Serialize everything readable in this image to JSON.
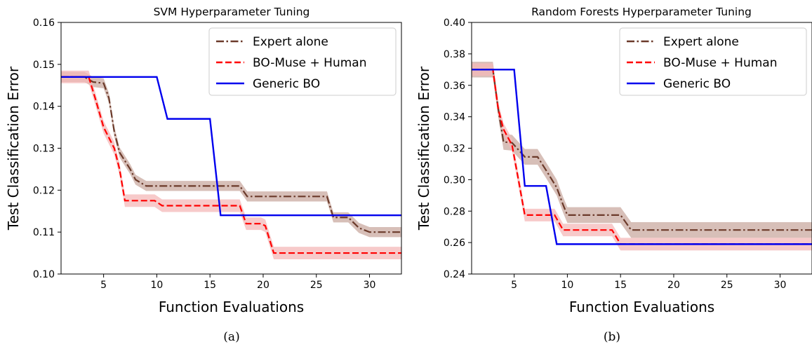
{
  "chart_data": [
    {
      "type": "line",
      "title": "SVM Hyperparameter Tuning",
      "xlabel": "Function Evaluations",
      "ylabel": "Test Classification Error",
      "caption": "(a)",
      "xlim": [
        1,
        33
      ],
      "ylim": [
        0.1,
        0.16
      ],
      "xticks": [
        5,
        10,
        15,
        20,
        25,
        30
      ],
      "yticks": [
        0.1,
        0.11,
        0.12,
        0.13,
        0.14,
        0.15,
        0.16
      ],
      "ytick_labels": [
        "0.10",
        "0.11",
        "0.12",
        "0.13",
        "0.14",
        "0.15",
        "0.16"
      ],
      "grid": false,
      "legend_position": "top-right",
      "series": [
        {
          "name": "Expert alone",
          "color": "#6b3a2a",
          "style": "dashdot",
          "band_color": "#c9a9a0",
          "band": 0.0012,
          "points": [
            [
              1,
              0.147
            ],
            [
              3.2,
              0.147
            ],
            [
              4,
              0.1458
            ],
            [
              5,
              0.1455
            ],
            [
              5.5,
              0.142
            ],
            [
              6,
              0.134
            ],
            [
              6.5,
              0.129
            ],
            [
              7,
              0.127
            ],
            [
              7.5,
              0.125
            ],
            [
              8,
              0.1225
            ],
            [
              9,
              0.121
            ],
            [
              17.8,
              0.121
            ],
            [
              18.5,
              0.1185
            ],
            [
              26,
              0.1185
            ],
            [
              26.6,
              0.1135
            ],
            [
              28,
              0.1135
            ],
            [
              29,
              0.111
            ],
            [
              30,
              0.11
            ],
            [
              33,
              0.11
            ]
          ]
        },
        {
          "name": "BO-Muse + Human",
          "color": "#ff0000",
          "style": "dashed",
          "band_color": "#f4b8b8",
          "band": 0.0015,
          "points": [
            [
              1,
              0.147
            ],
            [
              3.6,
              0.147
            ],
            [
              4.2,
              0.142
            ],
            [
              5,
              0.135
            ],
            [
              6,
              0.13
            ],
            [
              6.5,
              0.125
            ],
            [
              7,
              0.1175
            ],
            [
              9.8,
              0.1175
            ],
            [
              10.5,
              0.1163
            ],
            [
              17.8,
              0.1163
            ],
            [
              18.4,
              0.112
            ],
            [
              19.8,
              0.112
            ],
            [
              20.2,
              0.1115
            ],
            [
              21,
              0.105
            ],
            [
              33,
              0.105
            ]
          ]
        },
        {
          "name": "Generic BO",
          "color": "#0000ee",
          "style": "solid",
          "points": [
            [
              1,
              0.147
            ],
            [
              10,
              0.147
            ],
            [
              11,
              0.137
            ],
            [
              15,
              0.137
            ],
            [
              16,
              0.114
            ],
            [
              33,
              0.114
            ]
          ]
        }
      ]
    },
    {
      "type": "line",
      "title": "Random Forests Hyperparameter Tuning",
      "xlabel": "Function Evaluations",
      "ylabel": "Test Classification Error",
      "caption": "(b)",
      "xlim": [
        1,
        33
      ],
      "ylim": [
        0.24,
        0.4
      ],
      "xticks": [
        5,
        10,
        15,
        20,
        25,
        30
      ],
      "yticks": [
        0.24,
        0.26,
        0.28,
        0.3,
        0.32,
        0.34,
        0.36,
        0.38,
        0.4
      ],
      "ytick_labels": [
        "0.24",
        "0.26",
        "0.28",
        "0.30",
        "0.32",
        "0.34",
        "0.36",
        "0.38",
        "0.40"
      ],
      "grid": false,
      "legend_position": "top-right",
      "series": [
        {
          "name": "Expert alone",
          "color": "#6b3a2a",
          "style": "dashdot",
          "band_color": "#c9a9a0",
          "band": 0.005,
          "points": [
            [
              1,
              0.37
            ],
            [
              3,
              0.37
            ],
            [
              3.5,
              0.345
            ],
            [
              4,
              0.324
            ],
            [
              4.8,
              0.3235
            ],
            [
              5.4,
              0.319
            ],
            [
              6,
              0.3145
            ],
            [
              7.2,
              0.3145
            ],
            [
              8,
              0.306
            ],
            [
              9,
              0.295
            ],
            [
              9.6,
              0.284
            ],
            [
              10,
              0.2775
            ],
            [
              15,
              0.2775
            ],
            [
              16,
              0.268
            ],
            [
              33,
              0.268
            ]
          ]
        },
        {
          "name": "BO-Muse + Human",
          "color": "#ff0000",
          "style": "dashed",
          "band_color": "#f4b8b8",
          "band": 0.004,
          "points": [
            [
              1,
              0.37
            ],
            [
              3,
              0.37
            ],
            [
              3.5,
              0.345
            ],
            [
              4,
              0.332
            ],
            [
              4.8,
              0.322
            ],
            [
              5.4,
              0.3
            ],
            [
              6,
              0.2775
            ],
            [
              8.8,
              0.2775
            ],
            [
              9.6,
              0.268
            ],
            [
              14.2,
              0.268
            ],
            [
              15,
              0.259
            ],
            [
              33,
              0.259
            ]
          ]
        },
        {
          "name": "Generic BO",
          "color": "#0000ee",
          "style": "solid",
          "points": [
            [
              1,
              0.37
            ],
            [
              5,
              0.37
            ],
            [
              6,
              0.296
            ],
            [
              8,
              0.296
            ],
            [
              9,
              0.259
            ],
            [
              33,
              0.259
            ]
          ]
        }
      ]
    }
  ]
}
